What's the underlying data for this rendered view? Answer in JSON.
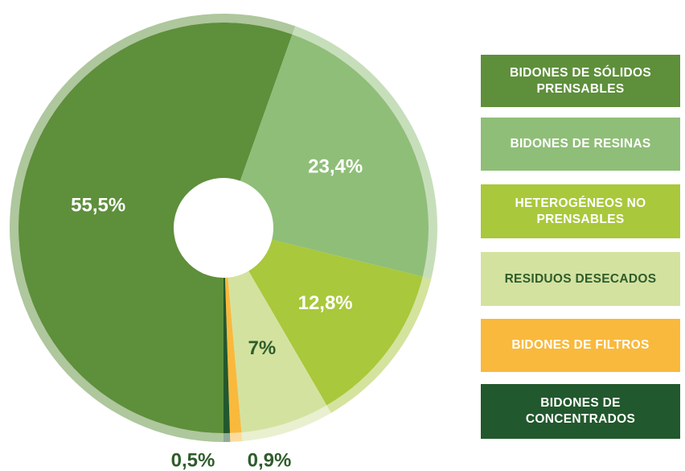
{
  "chart_data": {
    "type": "pie",
    "categories": [
      "BIDONES DE SÓLIDOS PRENSABLES",
      "BIDONES DE RESINAS",
      "HETEROGÉNEOS NO PRENSABLES",
      "RESIDUOS DESECADOS",
      "BIDONES DE FILTROS",
      "BIDONES DE CONCENTRADOS"
    ],
    "values": [
      55.5,
      23.4,
      12.8,
      7,
      0.9,
      0.5
    ],
    "value_labels": [
      "55,5%",
      "23,4%",
      "12,8%",
      "7%",
      "0,9%",
      "0,5%"
    ],
    "colors": [
      "#5e8f3b",
      "#8fbe78",
      "#a9c83b",
      "#d4e2a0",
      "#f9b93c",
      "#22582d"
    ],
    "donut": true
  }
}
